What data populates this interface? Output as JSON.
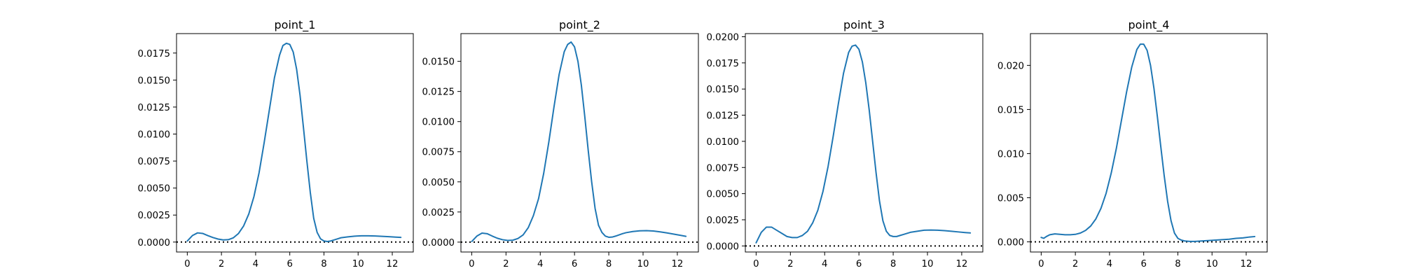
{
  "chart_data": [
    {
      "type": "line",
      "title": "point_1",
      "xlabel": "",
      "ylabel": "",
      "xlim": [
        -0.63,
        13.23
      ],
      "ylim": [
        -0.00092,
        0.0193
      ],
      "xticks": [
        0,
        2,
        4,
        6,
        8,
        10,
        12
      ],
      "xtick_labels": [
        "0",
        "2",
        "4",
        "6",
        "8",
        "10",
        "12"
      ],
      "yticks": [
        0,
        0.0025,
        0.005,
        0.0075,
        0.01,
        0.0125,
        0.015,
        0.0175
      ],
      "ytick_labels": [
        "0.0000",
        "0.0025",
        "0.0050",
        "0.0075",
        "0.0100",
        "0.0125",
        "0.0150",
        "0.0175"
      ],
      "reference_line": {
        "y": 0,
        "style": "dotted",
        "color": "#000000"
      },
      "grid": false,
      "series": [
        {
          "color": "#1f77b4",
          "x": [
            0,
            0.3,
            0.6,
            0.9,
            1.2,
            1.5,
            1.8,
            2.1,
            2.4,
            2.7,
            3.0,
            3.3,
            3.6,
            3.9,
            4.2,
            4.5,
            4.8,
            5.1,
            5.4,
            5.6,
            5.8,
            6.0,
            6.2,
            6.4,
            6.6,
            6.8,
            7.0,
            7.2,
            7.4,
            7.6,
            7.8,
            8.0,
            8.2,
            8.4,
            8.6,
            8.8,
            9.0,
            9.4,
            9.8,
            10.2,
            10.6,
            11.0,
            11.4,
            11.8,
            12.2,
            12.5
          ],
          "y": [
            0.0001,
            0.0006,
            0.00085,
            0.0008,
            0.0006,
            0.00042,
            0.00028,
            0.0002,
            0.00022,
            0.0004,
            0.0008,
            0.0015,
            0.0026,
            0.0042,
            0.0064,
            0.0092,
            0.0122,
            0.0152,
            0.0173,
            0.0182,
            0.0184,
            0.0183,
            0.0176,
            0.016,
            0.0136,
            0.0106,
            0.0075,
            0.0046,
            0.0022,
            0.0009,
            0.0003,
            0.0001,
            5e-05,
            0.0001,
            0.0002,
            0.0003,
            0.0004,
            0.00048,
            0.00055,
            0.00058,
            0.00058,
            0.00056,
            0.00053,
            0.0005,
            0.00046,
            0.00043
          ]
        }
      ]
    },
    {
      "type": "line",
      "title": "point_2",
      "xlabel": "",
      "ylabel": "",
      "xlim": [
        -0.63,
        13.23
      ],
      "ylim": [
        -0.00082,
        0.0173
      ],
      "xticks": [
        0,
        2,
        4,
        6,
        8,
        10,
        12
      ],
      "xtick_labels": [
        "0",
        "2",
        "4",
        "6",
        "8",
        "10",
        "12"
      ],
      "yticks": [
        0,
        0.0025,
        0.005,
        0.0075,
        0.01,
        0.0125,
        0.015
      ],
      "ytick_labels": [
        "0.0000",
        "0.0025",
        "0.0050",
        "0.0075",
        "0.0100",
        "0.0125",
        "0.0150"
      ],
      "reference_line": {
        "y": 0,
        "style": "dotted",
        "color": "#000000"
      },
      "grid": false,
      "series": [
        {
          "color": "#1f77b4",
          "x": [
            0,
            0.3,
            0.6,
            0.9,
            1.2,
            1.5,
            1.8,
            2.1,
            2.4,
            2.7,
            3.0,
            3.3,
            3.6,
            3.9,
            4.2,
            4.5,
            4.8,
            5.1,
            5.4,
            5.6,
            5.8,
            6.0,
            6.2,
            6.4,
            6.6,
            6.8,
            7.0,
            7.2,
            7.4,
            7.6,
            7.8,
            8.0,
            8.2,
            8.4,
            8.6,
            8.8,
            9.0,
            9.4,
            9.8,
            10.2,
            10.6,
            11.0,
            11.4,
            11.8,
            12.2,
            12.5
          ],
          "y": [
            5e-05,
            0.0005,
            0.00075,
            0.0007,
            0.0005,
            0.00032,
            0.0002,
            0.00014,
            0.00016,
            0.0003,
            0.0006,
            0.0012,
            0.0022,
            0.0036,
            0.0057,
            0.0083,
            0.0112,
            0.0139,
            0.0158,
            0.0164,
            0.0166,
            0.0162,
            0.015,
            0.013,
            0.0104,
            0.0076,
            0.005,
            0.0028,
            0.0014,
            0.0008,
            0.0005,
            0.0004,
            0.00042,
            0.0005,
            0.0006,
            0.0007,
            0.00078,
            0.00088,
            0.00094,
            0.00095,
            0.00092,
            0.00085,
            0.00076,
            0.00066,
            0.00056,
            0.00048
          ]
        }
      ]
    },
    {
      "type": "line",
      "title": "point_3",
      "xlabel": "",
      "ylabel": "",
      "xlim": [
        -0.63,
        13.23
      ],
      "ylim": [
        -0.00058,
        0.0203
      ],
      "xticks": [
        0,
        2,
        4,
        6,
        8,
        10,
        12
      ],
      "xtick_labels": [
        "0",
        "2",
        "4",
        "6",
        "8",
        "10",
        "12"
      ],
      "yticks": [
        0,
        0.0025,
        0.005,
        0.0075,
        0.01,
        0.0125,
        0.015,
        0.0175,
        0.02
      ],
      "ytick_labels": [
        "0.0000",
        "0.0025",
        "0.0050",
        "0.0075",
        "0.0100",
        "0.0125",
        "0.0150",
        "0.0175",
        "0.0200"
      ],
      "reference_line": {
        "y": 0,
        "style": "dotted",
        "color": "#000000"
      },
      "grid": false,
      "series": [
        {
          "color": "#1f77b4",
          "x": [
            0,
            0.3,
            0.6,
            0.9,
            1.2,
            1.5,
            1.8,
            2.1,
            2.4,
            2.7,
            3.0,
            3.3,
            3.6,
            3.9,
            4.2,
            4.5,
            4.8,
            5.1,
            5.4,
            5.6,
            5.8,
            6.0,
            6.2,
            6.4,
            6.6,
            6.8,
            7.0,
            7.2,
            7.4,
            7.6,
            7.8,
            8.0,
            8.2,
            8.4,
            8.6,
            8.8,
            9.0,
            9.4,
            9.8,
            10.2,
            10.6,
            11.0,
            11.4,
            11.8,
            12.2,
            12.5
          ],
          "y": [
            0.0003,
            0.0013,
            0.0018,
            0.0018,
            0.0015,
            0.0012,
            0.0009,
            0.0008,
            0.0008,
            0.001,
            0.0014,
            0.0022,
            0.0034,
            0.0052,
            0.0076,
            0.0105,
            0.0136,
            0.0165,
            0.0185,
            0.0191,
            0.0192,
            0.0188,
            0.0176,
            0.0156,
            0.013,
            0.01,
            0.007,
            0.0043,
            0.0024,
            0.0014,
            0.001,
            0.0009,
            0.0009,
            0.001,
            0.0011,
            0.0012,
            0.0013,
            0.0014,
            0.0015,
            0.00152,
            0.0015,
            0.00146,
            0.0014,
            0.00134,
            0.00128,
            0.00124
          ]
        }
      ]
    },
    {
      "type": "line",
      "title": "point_4",
      "xlabel": "",
      "ylabel": "",
      "xlim": [
        -0.63,
        13.23
      ],
      "ylim": [
        -0.00115,
        0.0236
      ],
      "xticks": [
        0,
        2,
        4,
        6,
        8,
        10,
        12
      ],
      "xtick_labels": [
        "0",
        "2",
        "4",
        "6",
        "8",
        "10",
        "12"
      ],
      "yticks": [
        0,
        0.005,
        0.01,
        0.015,
        0.02
      ],
      "ytick_labels": [
        "0.000",
        "0.005",
        "0.010",
        "0.015",
        "0.020"
      ],
      "reference_line": {
        "y": 0,
        "style": "dotted",
        "color": "#000000"
      },
      "grid": false,
      "series": [
        {
          "color": "#1f77b4",
          "x": [
            0,
            0.15,
            0.3,
            0.5,
            0.8,
            1.1,
            1.4,
            1.7,
            2.0,
            2.3,
            2.6,
            2.9,
            3.2,
            3.5,
            3.8,
            4.1,
            4.4,
            4.7,
            5.0,
            5.3,
            5.6,
            5.8,
            6.0,
            6.2,
            6.4,
            6.6,
            6.8,
            7.0,
            7.2,
            7.4,
            7.6,
            7.8,
            8.0,
            8.2,
            8.4,
            8.7,
            9.0,
            9.4,
            9.8,
            10.2,
            10.6,
            11.0,
            11.4,
            11.8,
            12.2,
            12.5
          ],
          "y": [
            0.0005,
            0.0004,
            0.0006,
            0.0008,
            0.0009,
            0.00085,
            0.0008,
            0.0008,
            0.00085,
            0.001,
            0.0013,
            0.0018,
            0.0026,
            0.0038,
            0.0055,
            0.0078,
            0.0106,
            0.0138,
            0.017,
            0.0198,
            0.0218,
            0.0224,
            0.0224,
            0.0217,
            0.02,
            0.0174,
            0.0142,
            0.0108,
            0.0075,
            0.0046,
            0.0024,
            0.001,
            0.0004,
            0.0002,
            0.0001,
            5e-05,
            5e-05,
            0.0001,
            0.00015,
            0.0002,
            0.00025,
            0.0003,
            0.0004,
            0.00045,
            0.00055,
            0.0006
          ]
        }
      ]
    }
  ]
}
